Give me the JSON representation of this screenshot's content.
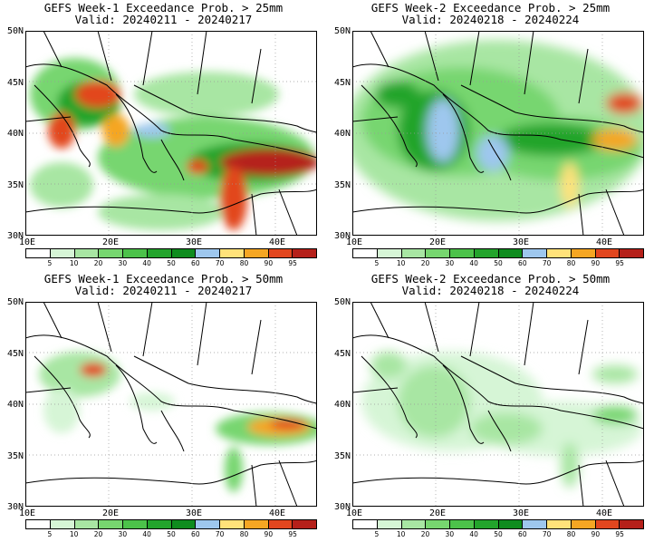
{
  "panels": [
    {
      "title": "GEFS Week-1 Exceedance Prob. > 25mm",
      "valid": "Valid: 20240211 - 20240217"
    },
    {
      "title": "GEFS Week-2 Exceedance Prob. > 25mm",
      "valid": "Valid: 20240218 - 20240224"
    },
    {
      "title": "GEFS Week-1 Exceedance Prob. > 50mm",
      "valid": "Valid: 20240211 - 20240217"
    },
    {
      "title": "GEFS Week-2 Exceedance Prob. > 50mm",
      "valid": "Valid: 20240218 - 20240224"
    }
  ],
  "axes": {
    "lon_labels": [
      "10E",
      "20E",
      "30E",
      "40E"
    ],
    "lat_labels": [
      "50N",
      "45N",
      "40N",
      "35N",
      "30N"
    ],
    "lon_range": [
      10,
      45
    ],
    "lat_range": [
      30,
      50
    ]
  },
  "colorbar": {
    "levels": [
      "5",
      "10",
      "20",
      "30",
      "40",
      "50",
      "60",
      "70",
      "80",
      "90",
      "95"
    ],
    "colors": [
      "#ffffff",
      "#d6f5d6",
      "#a8e6a3",
      "#77d670",
      "#4cc24a",
      "#23a42c",
      "#0f8c1e",
      "#9ec7ee",
      "#ffe27a",
      "#f5a623",
      "#e2461e",
      "#b5201a"
    ]
  }
}
